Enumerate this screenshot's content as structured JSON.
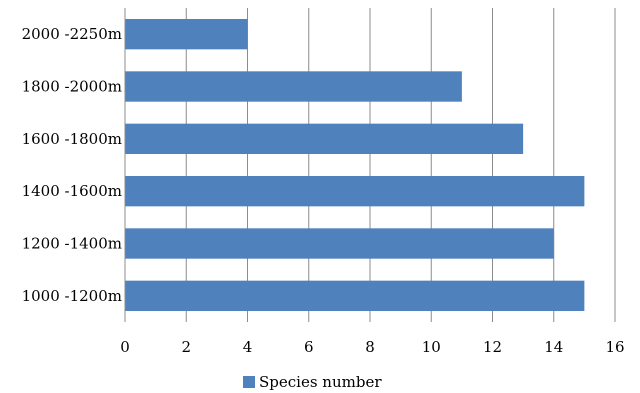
{
  "chart_data": {
    "type": "bar",
    "orientation": "horizontal",
    "categories": [
      "1000 -1200m",
      "1200 -1400m",
      "1400 -1600m",
      "1600 -1800m",
      "1800 -2000m",
      "2000 -2250m"
    ],
    "series": [
      {
        "name": "Species number",
        "values": [
          15,
          14,
          15,
          13,
          11,
          4
        ],
        "color": "#4f81bd"
      }
    ],
    "xlim": [
      0,
      16
    ],
    "xticks": [
      0,
      2,
      4,
      6,
      8,
      10,
      12,
      14,
      16
    ],
    "grid": "vertical",
    "legend_position": "bottom"
  }
}
